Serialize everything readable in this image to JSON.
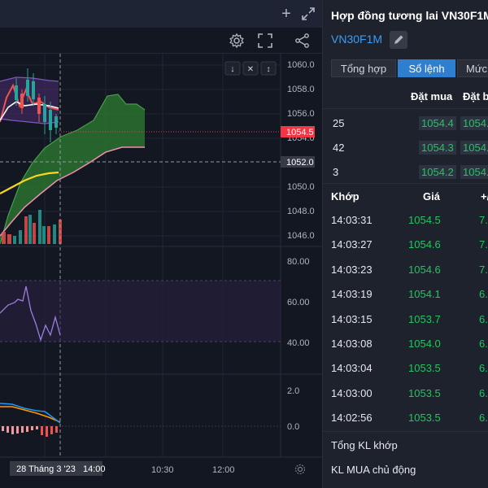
{
  "chart": {
    "price_axis": [
      "1060.0",
      "1058.0",
      "1056.0",
      "1054.0",
      "1052.0",
      "1050.0",
      "1048.0",
      "1046.0"
    ],
    "current_price": "1054.5",
    "crosshair_price": "1052.0",
    "rsi_axis": [
      "80.00",
      "60.00",
      "40.00"
    ],
    "macd_axis": [
      "2.0",
      "0.0"
    ],
    "time_axis": [
      "10:30",
      "12:00"
    ],
    "crosshair_time": "28 Tháng 3 '23   14:00"
  },
  "panel": {
    "title": "Hợp đồng tương lai VN30F1M",
    "symbol": "VN30F1M",
    "tabs": [
      "Tổng hợp",
      "Sổ lệnh",
      "Mức"
    ],
    "active_tab": 1,
    "orderbook_headers": [
      "Đặt mua",
      "Đặt b"
    ],
    "orderbook": [
      {
        "qty": "25",
        "bid": "1054.4",
        "ask": "1054."
      },
      {
        "qty": "42",
        "bid": "1054.3",
        "ask": "1054."
      },
      {
        "qty": "3",
        "bid": "1054.2",
        "ask": "1054."
      }
    ],
    "trades_headers": [
      "Khớp",
      "Giá",
      "+/"
    ],
    "trades": [
      {
        "time": "14:03:31",
        "price": "1054.5",
        "chg": "7."
      },
      {
        "time": "14:03:27",
        "price": "1054.6",
        "chg": "7."
      },
      {
        "time": "14:03:23",
        "price": "1054.6",
        "chg": "7."
      },
      {
        "time": "14:03:19",
        "price": "1054.1",
        "chg": "6."
      },
      {
        "time": "14:03:15",
        "price": "1053.7",
        "chg": "6."
      },
      {
        "time": "14:03:08",
        "price": "1054.0",
        "chg": "6."
      },
      {
        "time": "14:03:04",
        "price": "1053.5",
        "chg": "6."
      },
      {
        "time": "14:03:00",
        "price": "1053.5",
        "chg": "6."
      },
      {
        "time": "14:02:56",
        "price": "1053.5",
        "chg": "6."
      }
    ],
    "summary": [
      "Tổng KL khớp",
      "KL MUA chủ động"
    ]
  },
  "colors": {
    "green": "#22c55e",
    "accent": "#2f7fd0",
    "price_tag": "#f23645"
  },
  "icons": [
    "plus-icon",
    "expand-icon",
    "gear-icon",
    "fullscreen-icon",
    "share-icon",
    "pencil-icon",
    "settings-icon"
  ]
}
